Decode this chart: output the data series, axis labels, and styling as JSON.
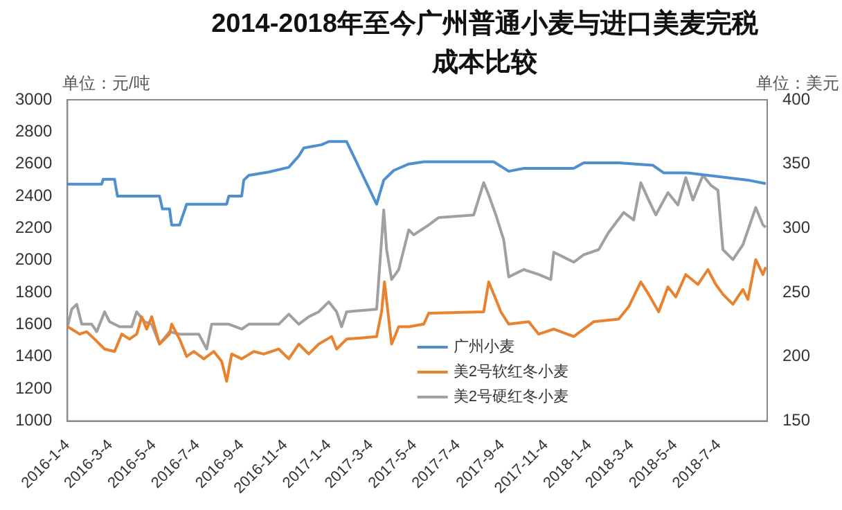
{
  "chart_data": {
    "type": "line",
    "title": "2014-2018年至今广州普通小麦与进口美麦完税成本比较",
    "ylabel": "单位：元/吨",
    "y2label": "单位：美元",
    "xlim": [
      "2016-01-04",
      "2018-09-10"
    ],
    "xticks": [
      {
        "value": "2016-01-04",
        "label": "2016-1-4"
      },
      {
        "value": "2016-03-04",
        "label": "2016-3-4"
      },
      {
        "value": "2016-05-04",
        "label": "2016-5-4"
      },
      {
        "value": "2016-07-04",
        "label": "2016-7-4"
      },
      {
        "value": "2016-09-04",
        "label": "2016-9-4"
      },
      {
        "value": "2016-11-04",
        "label": "2016-11-4"
      },
      {
        "value": "2017-01-04",
        "label": "2017-1-4"
      },
      {
        "value": "2017-03-04",
        "label": "2017-3-4"
      },
      {
        "value": "2017-05-04",
        "label": "2017-5-4"
      },
      {
        "value": "2017-07-04",
        "label": "2017-7-4"
      },
      {
        "value": "2017-09-04",
        "label": "2017-9-4"
      },
      {
        "value": "2017-11-04",
        "label": "2017-11-4"
      },
      {
        "value": "2018-01-04",
        "label": "2018-1-4"
      },
      {
        "value": "2018-03-04",
        "label": "2018-3-4"
      },
      {
        "value": "2018-05-04",
        "label": "2018-5-4"
      },
      {
        "value": "2018-07-04",
        "label": "2018-7-4"
      }
    ],
    "ylim": [
      1000,
      3000
    ],
    "yticks": [
      1000,
      1200,
      1400,
      1600,
      1800,
      2000,
      2200,
      2400,
      2600,
      2800,
      3000
    ],
    "y2lim": [
      150,
      400
    ],
    "y2ticks": [
      150,
      200,
      250,
      300,
      350,
      400
    ],
    "grid": false,
    "legend": "bottom",
    "marker": "none",
    "line_style": "solid",
    "series": [
      {
        "name": "广州小麦",
        "color": "#4f8fcf",
        "x": [
          "2016-01-04",
          "2016-02-21",
          "2016-02-23",
          "2016-03-10",
          "2016-03-14",
          "2016-05-12",
          "2016-05-16",
          "2016-05-26",
          "2016-05-29",
          "2016-06-09",
          "2016-06-19",
          "2016-08-14",
          "2016-08-17",
          "2016-09-04",
          "2016-09-07",
          "2016-09-14",
          "2016-10-12",
          "2016-11-09",
          "2016-11-23",
          "2016-11-30",
          "2016-12-25",
          "2017-01-04",
          "2017-01-29",
          "2017-03-12",
          "2017-03-22",
          "2017-04-05",
          "2017-04-26",
          "2017-05-17",
          "2017-08-23",
          "2017-09-13",
          "2017-10-04",
          "2017-12-13",
          "2017-12-27",
          "2018-02-14",
          "2018-04-03",
          "2018-04-18",
          "2018-05-22",
          "2018-06-19",
          "2018-07-17",
          "2018-08-14",
          "2018-09-08"
        ],
        "values": [
          2475,
          2475,
          2505,
          2505,
          2400,
          2400,
          2320,
          2320,
          2220,
          2220,
          2350,
          2350,
          2400,
          2400,
          2500,
          2530,
          2550,
          2580,
          2650,
          2700,
          2720,
          2740,
          2740,
          2350,
          2500,
          2560,
          2600,
          2614,
          2614,
          2555,
          2573,
          2573,
          2607,
          2607,
          2592,
          2545,
          2545,
          2530,
          2515,
          2500,
          2478
        ]
      },
      {
        "name": "美2号软红冬小麦",
        "color": "#e8822e",
        "x": [
          "2016-01-04",
          "2016-01-10",
          "2016-01-21",
          "2016-01-31",
          "2016-02-11",
          "2016-02-25",
          "2016-03-10",
          "2016-03-20",
          "2016-03-31",
          "2016-04-10",
          "2016-04-17",
          "2016-04-24",
          "2016-05-01",
          "2016-05-12",
          "2016-05-26",
          "2016-05-29",
          "2016-06-09",
          "2016-06-19",
          "2016-06-29",
          "2016-07-13",
          "2016-07-27",
          "2016-08-07",
          "2016-08-14",
          "2016-08-21",
          "2016-09-04",
          "2016-09-21",
          "2016-10-05",
          "2016-10-26",
          "2016-11-09",
          "2016-11-23",
          "2016-12-07",
          "2016-12-21",
          "2017-01-08",
          "2017-01-15",
          "2017-01-29",
          "2017-02-15",
          "2017-03-12",
          "2017-03-19",
          "2017-03-23",
          "2017-03-29",
          "2017-04-02",
          "2017-04-12",
          "2017-04-26",
          "2017-05-17",
          "2017-05-24",
          "2017-08-09",
          "2017-08-16",
          "2017-08-26",
          "2017-09-02",
          "2017-09-13",
          "2017-10-11",
          "2017-10-25",
          "2017-11-15",
          "2017-12-13",
          "2018-01-10",
          "2018-02-14",
          "2018-02-28",
          "2018-03-17",
          "2018-03-28",
          "2018-04-11",
          "2018-04-24",
          "2018-05-05",
          "2018-05-19",
          "2018-06-05",
          "2018-06-19",
          "2018-06-30",
          "2018-07-10",
          "2018-07-24",
          "2018-08-07",
          "2018-08-14",
          "2018-08-25",
          "2018-09-04",
          "2018-09-08"
        ],
        "values": [
          1587,
          1572,
          1541,
          1556,
          1510,
          1448,
          1433,
          1541,
          1510,
          1541,
          1649,
          1572,
          1649,
          1479,
          1541,
          1603,
          1510,
          1402,
          1433,
          1387,
          1433,
          1371,
          1247,
          1417,
          1387,
          1433,
          1417,
          1448,
          1387,
          1479,
          1417,
          1479,
          1526,
          1448,
          1510,
          1516,
          1526,
          1680,
          1866,
          1634,
          1479,
          1587,
          1587,
          1603,
          1671,
          1680,
          1866,
          1757,
          1680,
          1603,
          1618,
          1541,
          1572,
          1526,
          1618,
          1634,
          1711,
          1866,
          1789,
          1680,
          1835,
          1773,
          1912,
          1850,
          1943,
          1850,
          1789,
          1727,
          1819,
          1757,
          2005,
          1912,
          1958
        ]
      },
      {
        "name": "美2号硬红冬小麦",
        "color": "#a0a0a0",
        "x": [
          "2016-01-04",
          "2016-01-10",
          "2016-01-17",
          "2016-01-24",
          "2016-02-07",
          "2016-02-14",
          "2016-02-25",
          "2016-03-03",
          "2016-03-17",
          "2016-04-03",
          "2016-04-10",
          "2016-04-21",
          "2016-05-01",
          "2016-05-12",
          "2016-05-26",
          "2016-06-09",
          "2016-06-23",
          "2016-07-06",
          "2016-07-17",
          "2016-07-24",
          "2016-08-17",
          "2016-09-04",
          "2016-09-14",
          "2016-10-26",
          "2016-11-09",
          "2016-11-23",
          "2016-12-07",
          "2016-12-21",
          "2017-01-04",
          "2017-01-15",
          "2017-01-22",
          "2017-01-29",
          "2017-03-12",
          "2017-03-19",
          "2017-03-22",
          "2017-03-26",
          "2017-04-02",
          "2017-04-12",
          "2017-04-26",
          "2017-05-03",
          "2017-05-24",
          "2017-06-07",
          "2017-07-26",
          "2017-08-09",
          "2017-08-16",
          "2017-08-26",
          "2017-09-06",
          "2017-09-13",
          "2017-10-04",
          "2017-10-25",
          "2017-11-11",
          "2017-11-15",
          "2017-11-29",
          "2017-12-13",
          "2017-12-27",
          "2018-01-17",
          "2018-01-31",
          "2018-02-21",
          "2018-03-07",
          "2018-03-17",
          "2018-03-28",
          "2018-04-07",
          "2018-04-24",
          "2018-05-08",
          "2018-05-19",
          "2018-05-29",
          "2018-06-12",
          "2018-06-23",
          "2018-07-03",
          "2018-07-10",
          "2018-07-24",
          "2018-08-07",
          "2018-08-25",
          "2018-09-04",
          "2018-09-08"
        ],
        "values": [
          1587,
          1696,
          1727,
          1603,
          1603,
          1556,
          1680,
          1618,
          1587,
          1587,
          1680,
          1618,
          1603,
          1479,
          1556,
          1541,
          1541,
          1541,
          1448,
          1603,
          1603,
          1572,
          1603,
          1603,
          1665,
          1603,
          1649,
          1680,
          1742,
          1680,
          1587,
          1680,
          1696,
          2128,
          2314,
          2067,
          1881,
          1943,
          2190,
          2159,
          2221,
          2267,
          2283,
          2484,
          2407,
          2283,
          2128,
          1897,
          1943,
          1912,
          1881,
          2051,
          2020,
          1989,
          2035,
          2067,
          2175,
          2298,
          2252,
          2484,
          2376,
          2283,
          2422,
          2345,
          2515,
          2376,
          2530,
          2468,
          2437,
          2067,
          2005,
          2098,
          2329,
          2221,
          2206
        ]
      }
    ]
  }
}
